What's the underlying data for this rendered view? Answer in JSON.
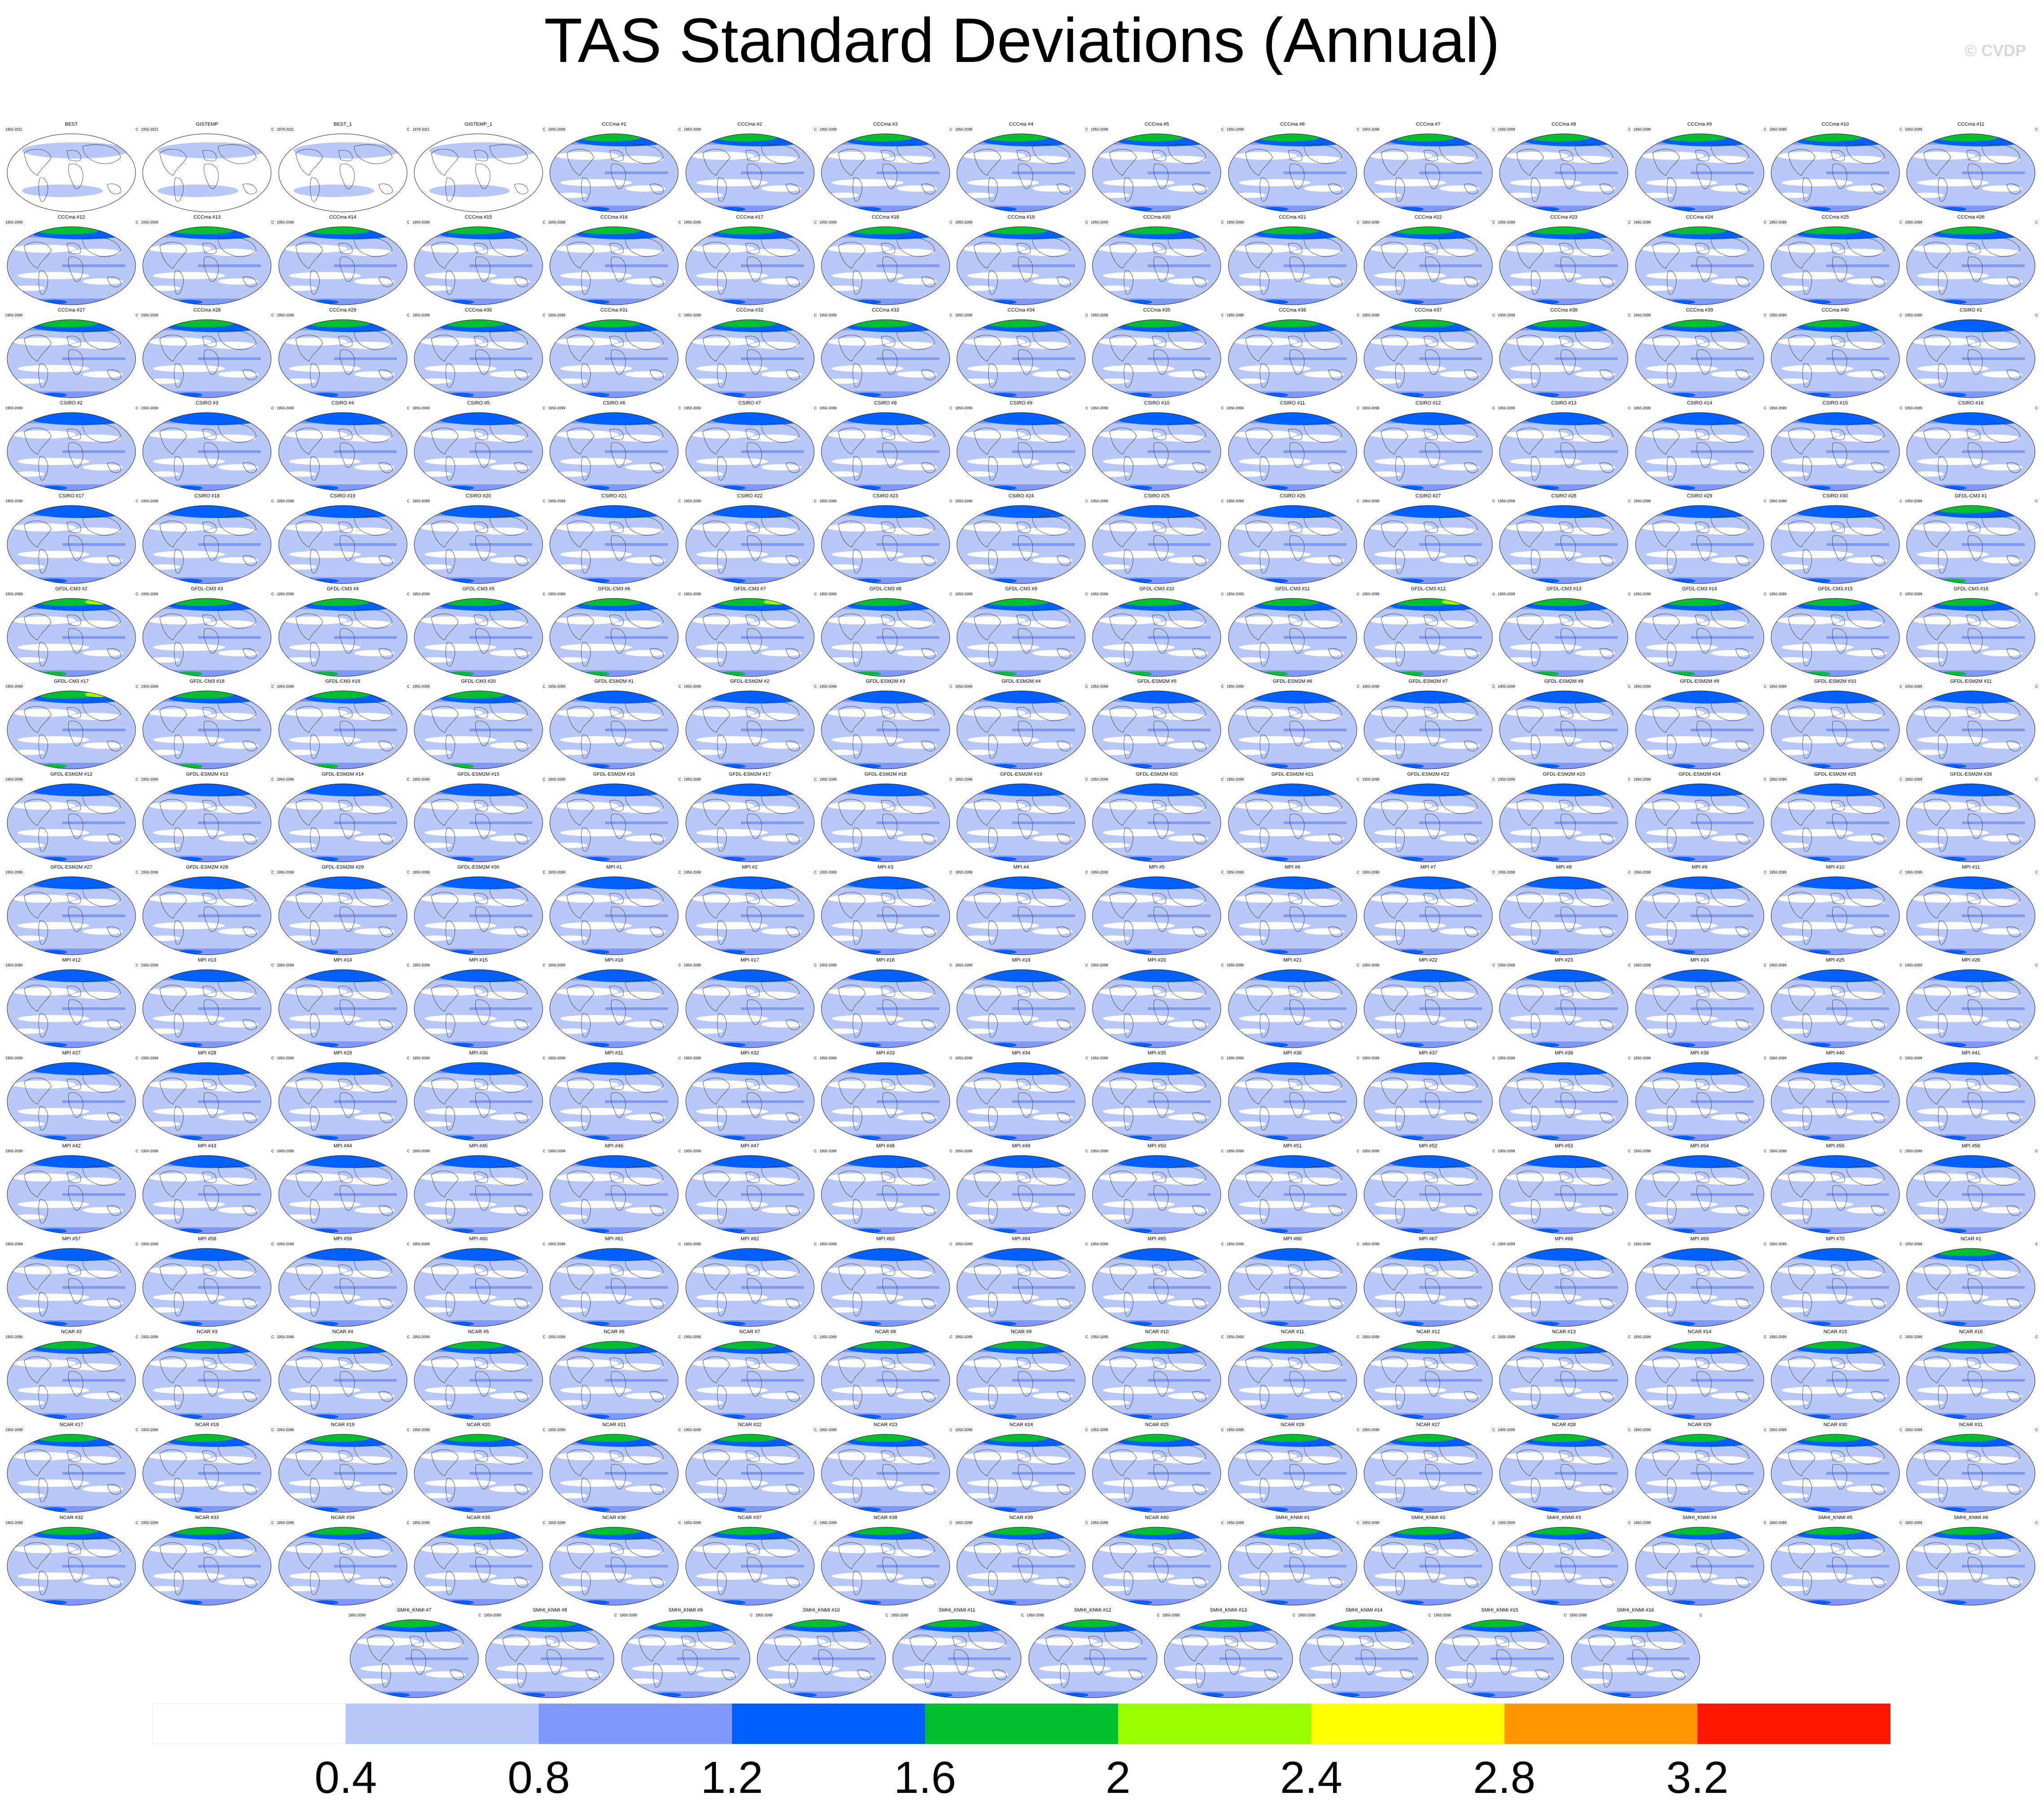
{
  "chart_data": {
    "type": "heatmap",
    "title": "TAS Standard Deviations (Annual)",
    "watermark": "© CVDP",
    "units": "C",
    "colorbar": {
      "boundaries": [
        0.4,
        0.8,
        1.2,
        1.6,
        2,
        2.4,
        2.8,
        3.2
      ],
      "tick_labels": [
        "0.4",
        "0.8",
        "1.2",
        "1.6",
        "2",
        "2.4",
        "2.8",
        "3.2"
      ],
      "colors": [
        "#ffffff",
        "#b8c8f8",
        "#8098f8",
        "#0060ff",
        "#00c030",
        "#98ff00",
        "#ffff00",
        "#ff9800",
        "#ff1800"
      ]
    },
    "panels": [
      {
        "title": "BEST",
        "years": "1950-2021"
      },
      {
        "title": "GISTEMP",
        "years": "1950-2021"
      },
      {
        "title": "BEST_1",
        "years": "1979-2021"
      },
      {
        "title": "GISTEMP_1",
        "years": "1979-2021"
      },
      {
        "title": "CCCma #1",
        "years": "1950-2099"
      },
      {
        "title": "CCCma #2",
        "years": "1950-2099"
      },
      {
        "title": "CCCma #3",
        "years": "1950-2099"
      },
      {
        "title": "CCCma #4",
        "years": "1950-2099"
      },
      {
        "title": "CCCma #5",
        "years": "1950-2099"
      },
      {
        "title": "CCCma #6",
        "years": "1950-2099"
      },
      {
        "title": "CCCma #7",
        "years": "1950-2099"
      },
      {
        "title": "CCCma #8",
        "years": "1950-2099"
      },
      {
        "title": "CCCma #9",
        "years": "1950-2099"
      },
      {
        "title": "CCCma #10",
        "years": "1950-2099"
      },
      {
        "title": "CCCma #11",
        "years": "1950-2099"
      },
      {
        "title": "CCCma #12",
        "years": "1950-2099"
      },
      {
        "title": "CCCma #13",
        "years": "1950-2099"
      },
      {
        "title": "CCCma #14",
        "years": "1950-2099"
      },
      {
        "title": "CCCma #15",
        "years": "1950-2099"
      },
      {
        "title": "CCCma #16",
        "years": "1950-2099"
      },
      {
        "title": "CCCma #17",
        "years": "1950-2099"
      },
      {
        "title": "CCCma #18",
        "years": "1950-2099"
      },
      {
        "title": "CCCma #19",
        "years": "1950-2099"
      },
      {
        "title": "CCCma #20",
        "years": "1950-2099"
      },
      {
        "title": "CCCma #21",
        "years": "1950-2099"
      },
      {
        "title": "CCCma #22",
        "years": "1950-2099"
      },
      {
        "title": "CCCma #23",
        "years": "1950-2099"
      },
      {
        "title": "CCCma #24",
        "years": "1950-2099"
      },
      {
        "title": "CCCma #25",
        "years": "1950-2099"
      },
      {
        "title": "CCCma #26",
        "years": "1950-2099"
      },
      {
        "title": "CCCma #27",
        "years": "1950-2099"
      },
      {
        "title": "CCCma #28",
        "years": "1950-2099"
      },
      {
        "title": "CCCma #29",
        "years": "1950-2099"
      },
      {
        "title": "CCCma #30",
        "years": "1950-2099"
      },
      {
        "title": "CCCma #31",
        "years": "1950-2099"
      },
      {
        "title": "CCCma #32",
        "years": "1950-2099"
      },
      {
        "title": "CCCma #33",
        "years": "1950-2099"
      },
      {
        "title": "CCCma #34",
        "years": "1950-2099"
      },
      {
        "title": "CCCma #35",
        "years": "1950-2099"
      },
      {
        "title": "CCCma #36",
        "years": "1950-2099"
      },
      {
        "title": "CCCma #37",
        "years": "1950-2099"
      },
      {
        "title": "CCCma #38",
        "years": "1950-2099"
      },
      {
        "title": "CCCma #39",
        "years": "1950-2099"
      },
      {
        "title": "CCCma #40",
        "years": "1950-2099"
      },
      {
        "title": "CSIRO #1",
        "years": "1950-2099"
      },
      {
        "title": "CSIRO #2",
        "years": "1950-2099"
      },
      {
        "title": "CSIRO #3",
        "years": "1950-2099"
      },
      {
        "title": "CSIRO #4",
        "years": "1950-2099"
      },
      {
        "title": "CSIRO #5",
        "years": "1950-2099"
      },
      {
        "title": "CSIRO #6",
        "years": "1950-2099"
      },
      {
        "title": "CSIRO #7",
        "years": "1950-2099"
      },
      {
        "title": "CSIRO #8",
        "years": "1950-2099"
      },
      {
        "title": "CSIRO #9",
        "years": "1950-2099"
      },
      {
        "title": "CSIRO #10",
        "years": "1950-2099"
      },
      {
        "title": "CSIRO #11",
        "years": "1950-2099"
      },
      {
        "title": "CSIRO #12",
        "years": "1950-2099"
      },
      {
        "title": "CSIRO #13",
        "years": "1950-2099"
      },
      {
        "title": "CSIRO #14",
        "years": "1950-2099"
      },
      {
        "title": "CSIRO #15",
        "years": "1950-2099"
      },
      {
        "title": "CSIRO #16",
        "years": "1950-2099"
      },
      {
        "title": "CSIRO #17",
        "years": "1950-2099"
      },
      {
        "title": "CSIRO #18",
        "years": "1950-2099"
      },
      {
        "title": "CSIRO #19",
        "years": "1950-2099"
      },
      {
        "title": "CSIRO #20",
        "years": "1950-2099"
      },
      {
        "title": "CSIRO #21",
        "years": "1950-2099"
      },
      {
        "title": "CSIRO #22",
        "years": "1950-2099"
      },
      {
        "title": "CSIRO #23",
        "years": "1950-2099"
      },
      {
        "title": "CSIRO #24",
        "years": "1950-2099"
      },
      {
        "title": "CSIRO #25",
        "years": "1950-2099"
      },
      {
        "title": "CSIRO #26",
        "years": "1950-2099"
      },
      {
        "title": "CSIRO #27",
        "years": "1950-2099"
      },
      {
        "title": "CSIRO #28",
        "years": "1950-2099"
      },
      {
        "title": "CSIRO #29",
        "years": "1950-2099"
      },
      {
        "title": "CSIRO #30",
        "years": "1950-2099"
      },
      {
        "title": "GFDL-CM3 #1",
        "years": "1950-2099"
      },
      {
        "title": "GFDL-CM3 #2",
        "years": "1950-2099"
      },
      {
        "title": "GFDL-CM3 #3",
        "years": "1950-2099"
      },
      {
        "title": "GFDL-CM3 #4",
        "years": "1950-2099"
      },
      {
        "title": "GFDL-CM3 #5",
        "years": "1950-2099"
      },
      {
        "title": "GFDL-CM3 #6",
        "years": "1950-2099"
      },
      {
        "title": "GFDL-CM3 #7",
        "years": "1950-2099"
      },
      {
        "title": "GFDL-CM3 #8",
        "years": "1950-2099"
      },
      {
        "title": "GFDL-CM3 #9",
        "years": "1950-2099"
      },
      {
        "title": "GFDL-CM3 #10",
        "years": "1950-2099"
      },
      {
        "title": "GFDL-CM3 #11",
        "years": "1950-2099"
      },
      {
        "title": "GFDL-CM3 #12",
        "years": "1950-2099"
      },
      {
        "title": "GFDL-CM3 #13",
        "years": "1950-2099"
      },
      {
        "title": "GFDL-CM3 #14",
        "years": "1950-2099"
      },
      {
        "title": "GFDL-CM3 #15",
        "years": "1950-2099"
      },
      {
        "title": "GFDL-CM3 #16",
        "years": "1950-2099"
      },
      {
        "title": "GFDL-CM3 #17",
        "years": "1950-2099"
      },
      {
        "title": "GFDL-CM3 #18",
        "years": "1950-2099"
      },
      {
        "title": "GFDL-CM3 #19",
        "years": "1950-2099"
      },
      {
        "title": "GFDL-CM3 #20",
        "years": "1950-2099"
      },
      {
        "title": "GFDL-ESM2M #1",
        "years": "1950-2099"
      },
      {
        "title": "GFDL-ESM2M #2",
        "years": "1950-2099"
      },
      {
        "title": "GFDL-ESM2M #3",
        "years": "1950-2099"
      },
      {
        "title": "GFDL-ESM2M #4",
        "years": "1950-2099"
      },
      {
        "title": "GFDL-ESM2M #5",
        "years": "1950-2099"
      },
      {
        "title": "GFDL-ESM2M #6",
        "years": "1950-2099"
      },
      {
        "title": "GFDL-ESM2M #7",
        "years": "1950-2099"
      },
      {
        "title": "GFDL-ESM2M #8",
        "years": "1950-2099"
      },
      {
        "title": "GFDL-ESM2M #9",
        "years": "1950-2099"
      },
      {
        "title": "GFDL-ESM2M #10",
        "years": "1950-2099"
      },
      {
        "title": "GFDL-ESM2M #11",
        "years": "1950-2099"
      },
      {
        "title": "GFDL-ESM2M #12",
        "years": "1950-2099"
      },
      {
        "title": "GFDL-ESM2M #13",
        "years": "1950-2099"
      },
      {
        "title": "GFDL-ESM2M #14",
        "years": "1950-2099"
      },
      {
        "title": "GFDL-ESM2M #15",
        "years": "1950-2099"
      },
      {
        "title": "GFDL-ESM2M #16",
        "years": "1950-2099"
      },
      {
        "title": "GFDL-ESM2M #17",
        "years": "1950-2099"
      },
      {
        "title": "GFDL-ESM2M #18",
        "years": "1950-2099"
      },
      {
        "title": "GFDL-ESM2M #19",
        "years": "1950-2099"
      },
      {
        "title": "GFDL-ESM2M #20",
        "years": "1950-2099"
      },
      {
        "title": "GFDL-ESM2M #21",
        "years": "1950-2099"
      },
      {
        "title": "GFDL-ESM2M #22",
        "years": "1950-2099"
      },
      {
        "title": "GFDL-ESM2M #23",
        "years": "1950-2099"
      },
      {
        "title": "GFDL-ESM2M #24",
        "years": "1950-2099"
      },
      {
        "title": "GFDL-ESM2M #25",
        "years": "1950-2099"
      },
      {
        "title": "GFDL-ESM2M #26",
        "years": "1950-2099"
      },
      {
        "title": "GFDL-ESM2M #27",
        "years": "1950-2099"
      },
      {
        "title": "GFDL-ESM2M #28",
        "years": "1950-2099"
      },
      {
        "title": "GFDL-ESM2M #29",
        "years": "1950-2099"
      },
      {
        "title": "GFDL-ESM2M #30",
        "years": "1950-2099"
      },
      {
        "title": "MPI #1",
        "years": "1950-2099"
      },
      {
        "title": "MPI #2",
        "years": "1950-2099"
      },
      {
        "title": "MPI #3",
        "years": "1950-2099"
      },
      {
        "title": "MPI #4",
        "years": "1950-2099"
      },
      {
        "title": "MPI #5",
        "years": "1950-2099"
      },
      {
        "title": "MPI #6",
        "years": "1950-2099"
      },
      {
        "title": "MPI #7",
        "years": "1950-2099"
      },
      {
        "title": "MPI #8",
        "years": "1950-2099"
      },
      {
        "title": "MPI #9",
        "years": "1950-2099"
      },
      {
        "title": "MPI #10",
        "years": "1950-2099"
      },
      {
        "title": "MPI #11",
        "years": "1950-2099"
      },
      {
        "title": "MPI #12",
        "years": "1950-2099"
      },
      {
        "title": "MPI #13",
        "years": "1950-2099"
      },
      {
        "title": "MPI #14",
        "years": "1950-2099"
      },
      {
        "title": "MPI #15",
        "years": "1950-2099"
      },
      {
        "title": "MPI #16",
        "years": "1950-2099"
      },
      {
        "title": "MPI #17",
        "years": "1950-2099"
      },
      {
        "title": "MPI #18",
        "years": "1950-2099"
      },
      {
        "title": "MPI #19",
        "years": "1950-2099"
      },
      {
        "title": "MPI #20",
        "years": "1950-2099"
      },
      {
        "title": "MPI #21",
        "years": "1950-2099"
      },
      {
        "title": "MPI #22",
        "years": "1950-2099"
      },
      {
        "title": "MPI #23",
        "years": "1950-2099"
      },
      {
        "title": "MPI #24",
        "years": "1950-2099"
      },
      {
        "title": "MPI #25",
        "years": "1950-2099"
      },
      {
        "title": "MPI #26",
        "years": "1950-2099"
      },
      {
        "title": "MPI #27",
        "years": "1950-2099"
      },
      {
        "title": "MPI #28",
        "years": "1950-2099"
      },
      {
        "title": "MPI #29",
        "years": "1950-2099"
      },
      {
        "title": "MPI #30",
        "years": "1950-2099"
      },
      {
        "title": "MPI #31",
        "years": "1950-2099"
      },
      {
        "title": "MPI #32",
        "years": "1950-2099"
      },
      {
        "title": "MPI #33",
        "years": "1950-2099"
      },
      {
        "title": "MPI #34",
        "years": "1950-2099"
      },
      {
        "title": "MPI #35",
        "years": "1950-2099"
      },
      {
        "title": "MPI #36",
        "years": "1950-2099"
      },
      {
        "title": "MPI #37",
        "years": "1950-2099"
      },
      {
        "title": "MPI #38",
        "years": "1950-2099"
      },
      {
        "title": "MPI #39",
        "years": "1950-2099"
      },
      {
        "title": "MPI #40",
        "years": "1950-2099"
      },
      {
        "title": "MPI #41",
        "years": "1950-2099"
      },
      {
        "title": "MPI #42",
        "years": "1950-2099"
      },
      {
        "title": "MPI #43",
        "years": "1950-2099"
      },
      {
        "title": "MPI #44",
        "years": "1950-2099"
      },
      {
        "title": "MPI #45",
        "years": "1950-2099"
      },
      {
        "title": "MPI #46",
        "years": "1950-2099"
      },
      {
        "title": "MPI #47",
        "years": "1950-2099"
      },
      {
        "title": "MPI #48",
        "years": "1950-2099"
      },
      {
        "title": "MPI #49",
        "years": "1950-2099"
      },
      {
        "title": "MPI #50",
        "years": "1950-2099"
      },
      {
        "title": "MPI #51",
        "years": "1950-2099"
      },
      {
        "title": "MPI #52",
        "years": "1950-2099"
      },
      {
        "title": "MPI #53",
        "years": "1950-2099"
      },
      {
        "title": "MPI #54",
        "years": "1950-2099"
      },
      {
        "title": "MPI #55",
        "years": "1950-2099"
      },
      {
        "title": "MPI #56",
        "years": "1950-2099"
      },
      {
        "title": "MPI #57",
        "years": "1950-2099"
      },
      {
        "title": "MPI #58",
        "years": "1950-2099"
      },
      {
        "title": "MPI #59",
        "years": "1950-2099"
      },
      {
        "title": "MPI #60",
        "years": "1950-2099"
      },
      {
        "title": "MPI #61",
        "years": "1950-2099"
      },
      {
        "title": "MPI #62",
        "years": "1950-2099"
      },
      {
        "title": "MPI #63",
        "years": "1950-2099"
      },
      {
        "title": "MPI #64",
        "years": "1950-2099"
      },
      {
        "title": "MPI #65",
        "years": "1950-2099"
      },
      {
        "title": "MPI #66",
        "years": "1950-2099"
      },
      {
        "title": "MPI #67",
        "years": "1950-2099"
      },
      {
        "title": "MPI #68",
        "years": "1950-2099"
      },
      {
        "title": "MPI #69",
        "years": "1950-2099"
      },
      {
        "title": "MPI #70",
        "years": "1950-2099"
      },
      {
        "title": "NCAR #1",
        "years": "1950-2099"
      },
      {
        "title": "NCAR #2",
        "years": "1950-2099"
      },
      {
        "title": "NCAR #3",
        "years": "1950-2099"
      },
      {
        "title": "NCAR #4",
        "years": "1950-2099"
      },
      {
        "title": "NCAR #5",
        "years": "1950-2099"
      },
      {
        "title": "NCAR #6",
        "years": "1950-2099"
      },
      {
        "title": "NCAR #7",
        "years": "1950-2099"
      },
      {
        "title": "NCAR #8",
        "years": "1950-2099"
      },
      {
        "title": "NCAR #9",
        "years": "1950-2099"
      },
      {
        "title": "NCAR #10",
        "years": "1950-2099"
      },
      {
        "title": "NCAR #11",
        "years": "1950-2099"
      },
      {
        "title": "NCAR #12",
        "years": "1950-2099"
      },
      {
        "title": "NCAR #13",
        "years": "1950-2099"
      },
      {
        "title": "NCAR #14",
        "years": "1950-2099"
      },
      {
        "title": "NCAR #15",
        "years": "1950-2099"
      },
      {
        "title": "NCAR #16",
        "years": "1950-2099"
      },
      {
        "title": "NCAR #17",
        "years": "1950-2099"
      },
      {
        "title": "NCAR #18",
        "years": "1950-2099"
      },
      {
        "title": "NCAR #19",
        "years": "1950-2099"
      },
      {
        "title": "NCAR #20",
        "years": "1950-2099"
      },
      {
        "title": "NCAR #21",
        "years": "1950-2099"
      },
      {
        "title": "NCAR #22",
        "years": "1950-2099"
      },
      {
        "title": "NCAR #23",
        "years": "1950-2099"
      },
      {
        "title": "NCAR #24",
        "years": "1950-2099"
      },
      {
        "title": "NCAR #25",
        "years": "1950-2099"
      },
      {
        "title": "NCAR #26",
        "years": "1950-2099"
      },
      {
        "title": "NCAR #27",
        "years": "1950-2099"
      },
      {
        "title": "NCAR #28",
        "years": "1950-2099"
      },
      {
        "title": "NCAR #29",
        "years": "1950-2099"
      },
      {
        "title": "NCAR #30",
        "years": "1950-2099"
      },
      {
        "title": "NCAR #31",
        "years": "1950-2099"
      },
      {
        "title": "NCAR #32",
        "years": "1950-2099"
      },
      {
        "title": "NCAR #33",
        "years": "1950-2099"
      },
      {
        "title": "NCAR #34",
        "years": "1950-2099"
      },
      {
        "title": "NCAR #35",
        "years": "1950-2099"
      },
      {
        "title": "NCAR #36",
        "years": "1950-2099"
      },
      {
        "title": "NCAR #37",
        "years": "1950-2099"
      },
      {
        "title": "NCAR #38",
        "years": "1950-2099"
      },
      {
        "title": "NCAR #39",
        "years": "1950-2099"
      },
      {
        "title": "NCAR #40",
        "years": "1950-2099"
      },
      {
        "title": "SMHI_KNMI #1",
        "years": "1950-2099"
      },
      {
        "title": "SMHI_KNMI #2",
        "years": "1950-2099"
      },
      {
        "title": "SMHI_KNMI #3",
        "years": "1950-2099"
      },
      {
        "title": "SMHI_KNMI #4",
        "years": "1950-2099"
      },
      {
        "title": "SMHI_KNMI #5",
        "years": "1950-2099"
      },
      {
        "title": "SMHI_KNMI #6",
        "years": "1950-2099"
      },
      {
        "title": "SMHI_KNMI #7",
        "years": "1950-2099"
      },
      {
        "title": "SMHI_KNMI #8",
        "years": "1950-2099"
      },
      {
        "title": "SMHI_KNMI #9",
        "years": "1950-2099"
      },
      {
        "title": "SMHI_KNMI #10",
        "years": "1950-2099"
      },
      {
        "title": "SMHI_KNMI #11",
        "years": "1950-2099"
      },
      {
        "title": "SMHI_KNMI #12",
        "years": "1950-2099"
      },
      {
        "title": "SMHI_KNMI #13",
        "years": "1950-2099"
      },
      {
        "title": "SMHI_KNMI #14",
        "years": "1950-2099"
      },
      {
        "title": "SMHI_KNMI #15",
        "years": "1950-2099"
      },
      {
        "title": "SMHI_KNMI #16",
        "years": "1950-2099"
      }
    ]
  }
}
